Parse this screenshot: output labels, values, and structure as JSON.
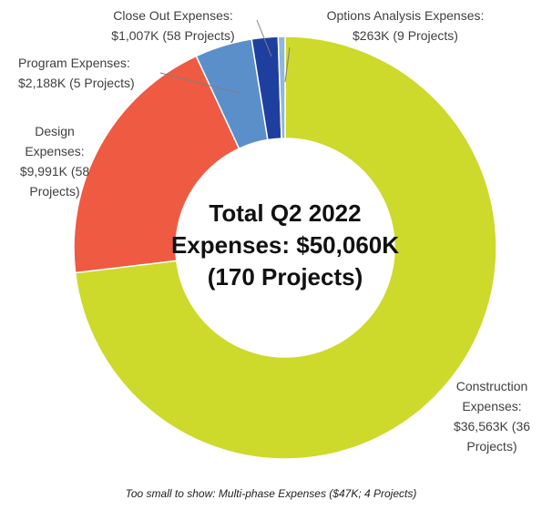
{
  "chart_data": {
    "type": "donut",
    "categories": [
      "Construction Expenses:",
      "Design Expenses:",
      "Program Expenses:",
      "Close Out Expenses:",
      "Options Analysis Expenses:"
    ],
    "values": [
      36563,
      9991,
      2188,
      1007,
      263
    ],
    "value_labels": [
      "$36,563K",
      "$9,991K",
      "$2,188K",
      "$1,007K",
      "$263K"
    ],
    "project_labels": [
      "(36 Projects)",
      "(58 Projects)",
      "(5 Projects)",
      "(58 Projects)",
      "(9 Projects)"
    ],
    "colors": [
      "#cdd92b",
      "#ef5a43",
      "#5b8fca",
      "#1f3f9f",
      "#92b7d6"
    ],
    "center_text": [
      "Total Q2 2022",
      "Expenses: $50,060K",
      "(170 Projects)"
    ],
    "note": "Too small to show: Multi-phase Expenses ($47K; 4 Projects)"
  }
}
